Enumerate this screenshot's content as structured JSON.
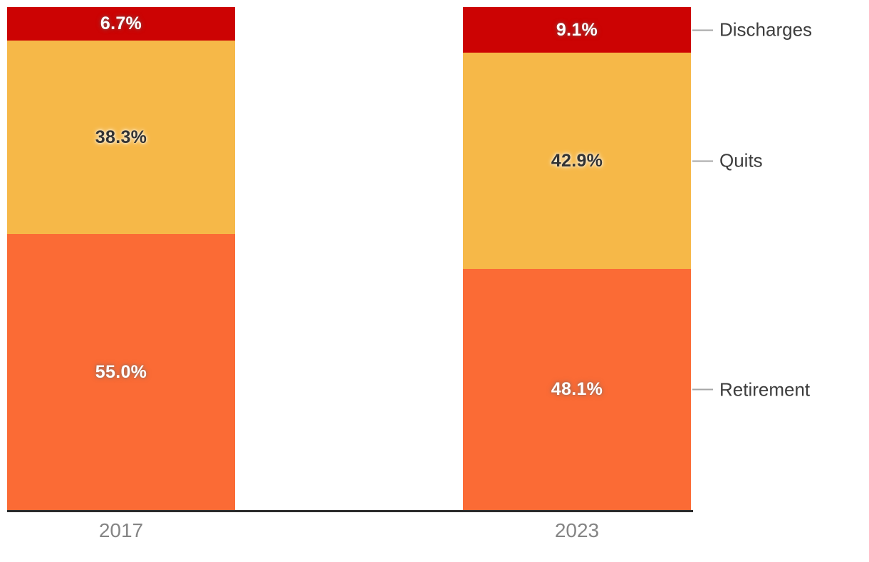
{
  "chart_data": {
    "type": "bar",
    "variant": "stacked-percentage",
    "orientation": "vertical",
    "title": "",
    "xlabel": "",
    "ylabel": "",
    "grid": false,
    "legend_position": "right",
    "categories": [
      "2017",
      "2023"
    ],
    "series_top_to_bottom": [
      {
        "name": "Discharges",
        "color": "#cc0303",
        "values": [
          6.7,
          9.1
        ],
        "labels": [
          "6.7%",
          "9.1%"
        ],
        "label_style": "light"
      },
      {
        "name": "Quits",
        "color": "#f6b848",
        "values": [
          38.3,
          42.9
        ],
        "labels": [
          "38.3%",
          "42.9%"
        ],
        "label_style": "dark"
      },
      {
        "name": "Retirement",
        "color": "#fb6b35",
        "values": [
          55.0,
          48.1
        ],
        "labels": [
          "55.0%",
          "48.1%"
        ],
        "label_style": "light"
      }
    ],
    "axis": {
      "baseline_color": "#2b2b2b",
      "tick_label_color": "#848484"
    },
    "legend_entries": [
      "Discharges",
      "Quits",
      "Retirement"
    ],
    "legend_text_color": "#3d3d3d",
    "legend_line_color": "#a6a6a6"
  }
}
